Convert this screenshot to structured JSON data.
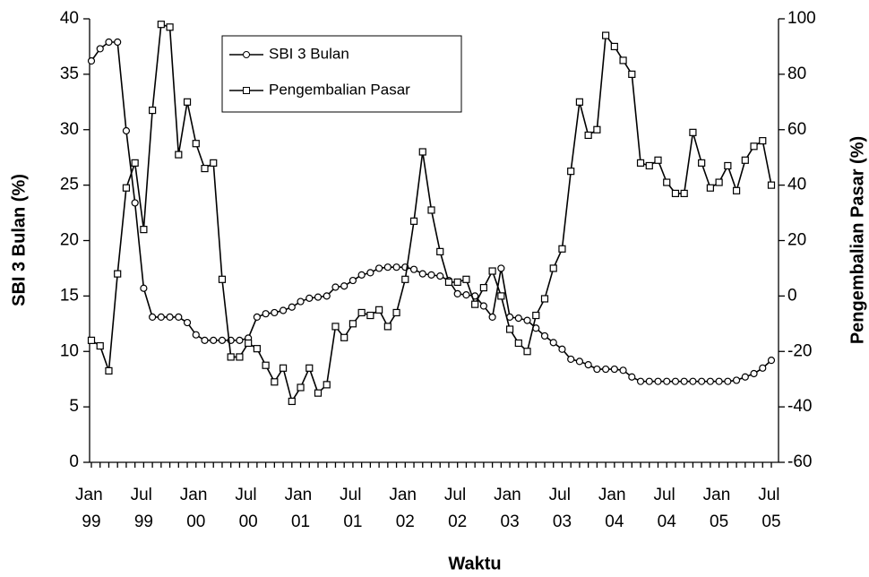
{
  "chart_data": {
    "type": "line",
    "x_label": "Waktu",
    "y_label": "SBI 3 Bulan (%)",
    "y2_label": "Pengembalian Pasar (%)",
    "categories": [
      "Jan 99",
      null,
      null,
      null,
      null,
      null,
      "Jul 99",
      null,
      null,
      null,
      null,
      null,
      "Jan 00",
      null,
      null,
      null,
      null,
      null,
      "Jul 00",
      null,
      null,
      null,
      null,
      null,
      "Jan 01",
      null,
      null,
      null,
      null,
      null,
      "Jul 01",
      null,
      null,
      null,
      null,
      null,
      "Jan 02",
      null,
      null,
      null,
      null,
      null,
      "Jul 02",
      null,
      null,
      null,
      null,
      null,
      "Jan 03",
      null,
      null,
      null,
      null,
      null,
      "Jul 03",
      null,
      null,
      null,
      null,
      null,
      "Jan 04",
      null,
      null,
      null,
      null,
      null,
      "Jul 04",
      null,
      null,
      null,
      null,
      null,
      "Jan 05",
      null,
      null,
      null,
      null,
      null,
      "Jul 05"
    ],
    "series": [
      {
        "name": "SBI 3 Bulan",
        "color": "#000000",
        "marker": "circle",
        "values": [
          36.2,
          37.3,
          37.9,
          37.9,
          29.9,
          23.4,
          15.7,
          13.1,
          13.1,
          13.1,
          13.1,
          12.6,
          11.5,
          11.0,
          11.0,
          11.0,
          11.0,
          11.0,
          11.2,
          13.1,
          13.4,
          13.5,
          13.7,
          14.0,
          14.5,
          14.8,
          14.9,
          15.0,
          15.8,
          15.9,
          16.4,
          16.9,
          17.1,
          17.5,
          17.6,
          17.6,
          17.6,
          17.4,
          17.0,
          16.9,
          16.8,
          16.4,
          15.2,
          15.1,
          15.0,
          14.1,
          13.1,
          17.5,
          13.1,
          13.0,
          12.8,
          12.1,
          11.4,
          10.8,
          10.2,
          9.3,
          9.1,
          8.8,
          8.4,
          8.4,
          8.4,
          8.3,
          7.7,
          7.3,
          7.3,
          7.3,
          7.3,
          7.3,
          7.3,
          7.3,
          7.3,
          7.3,
          7.3,
          7.3,
          7.4,
          7.7,
          8.0,
          8.5,
          9.2
        ]
      },
      {
        "name": "Pengembalian Pasar",
        "color": "#000000",
        "marker": "square",
        "axis": "y2",
        "values": [
          -16,
          -18,
          -27,
          8,
          39,
          48,
          24,
          67,
          98,
          97,
          51,
          70,
          55,
          46,
          48,
          6,
          -22,
          -22,
          -17,
          -19,
          -25,
          -31,
          -26,
          -38,
          -33,
          -26,
          -35,
          -32,
          -11,
          -15,
          -10,
          -6,
          -7,
          -5,
          -11,
          -6,
          6,
          27,
          52,
          31,
          16,
          5,
          5,
          6,
          -3,
          3,
          9,
          0,
          -12,
          -17,
          -20,
          -7,
          -1,
          10,
          17,
          45,
          70,
          58,
          60,
          94,
          90,
          85,
          80,
          48,
          47,
          49,
          41,
          37,
          37,
          59,
          48,
          39,
          41,
          47,
          38,
          49,
          54,
          56,
          40
        ]
      }
    ],
    "ylim": [
      0,
      40
    ],
    "yticks": [
      0,
      5,
      10,
      15,
      20,
      25,
      30,
      35,
      40
    ],
    "y2lim": [
      -60,
      100
    ],
    "y2ticks": [
      -60,
      -40,
      -20,
      0,
      20,
      40,
      60,
      80,
      100
    ],
    "grid": false,
    "legend": "top-left"
  }
}
